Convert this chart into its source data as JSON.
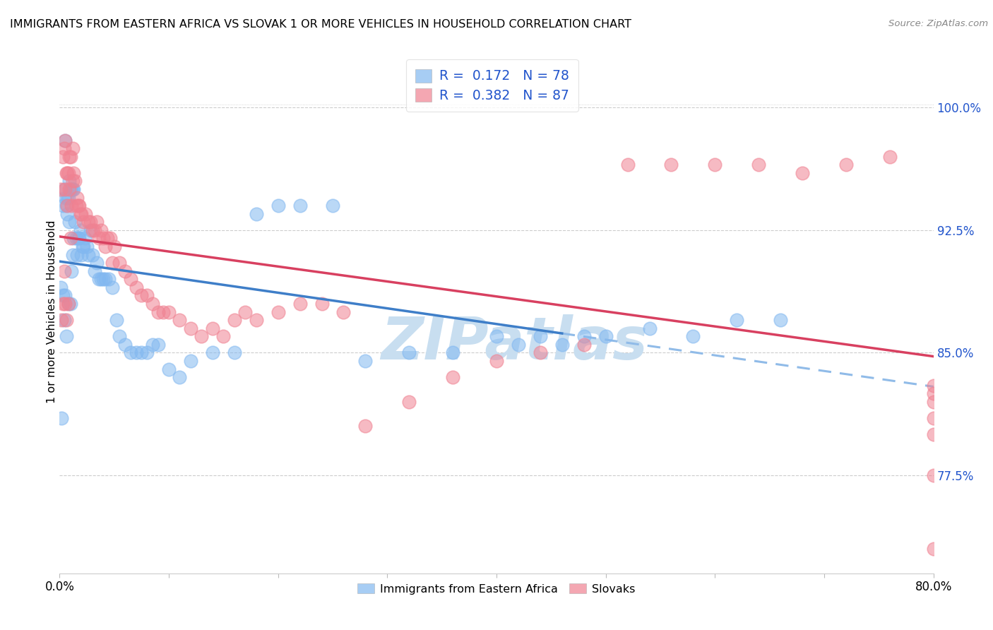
{
  "title": "IMMIGRANTS FROM EASTERN AFRICA VS SLOVAK 1 OR MORE VEHICLES IN HOUSEHOLD CORRELATION CHART",
  "source": "Source: ZipAtlas.com",
  "ylabel": "1 or more Vehicles in Household",
  "legend_blue_r": "0.172",
  "legend_blue_n": "78",
  "legend_pink_r": "0.382",
  "legend_pink_n": "87",
  "blue_color": "#82B8F0",
  "pink_color": "#F08292",
  "blue_line_color": "#3E7EC8",
  "pink_line_color": "#D84060",
  "dashed_line_color": "#90BBE8",
  "r_value_color": "#2255CC",
  "background_color": "#FFFFFF",
  "watermark_text_color": "#C8DEF0",
  "x_min": 0.0,
  "x_max": 0.8,
  "y_min": 0.715,
  "y_max": 1.035,
  "ytick_vals": [
    0.775,
    0.85,
    0.925,
    1.0
  ],
  "ytick_labels": [
    "77.5%",
    "85.0%",
    "92.5%",
    "100.0%"
  ],
  "blue_x": [
    0.001,
    0.002,
    0.003,
    0.003,
    0.004,
    0.004,
    0.005,
    0.005,
    0.005,
    0.006,
    0.006,
    0.007,
    0.007,
    0.008,
    0.008,
    0.009,
    0.009,
    0.01,
    0.01,
    0.011,
    0.011,
    0.012,
    0.012,
    0.013,
    0.013,
    0.014,
    0.015,
    0.016,
    0.017,
    0.018,
    0.019,
    0.02,
    0.021,
    0.022,
    0.023,
    0.025,
    0.026,
    0.028,
    0.03,
    0.032,
    0.034,
    0.036,
    0.038,
    0.04,
    0.042,
    0.045,
    0.048,
    0.052,
    0.055,
    0.06,
    0.065,
    0.07,
    0.075,
    0.08,
    0.085,
    0.09,
    0.1,
    0.11,
    0.12,
    0.14,
    0.16,
    0.18,
    0.2,
    0.22,
    0.25,
    0.28,
    0.32,
    0.36,
    0.4,
    0.42,
    0.44,
    0.46,
    0.48,
    0.5,
    0.54,
    0.58,
    0.62,
    0.66
  ],
  "blue_y": [
    0.89,
    0.81,
    0.885,
    0.94,
    0.87,
    0.95,
    0.885,
    0.945,
    0.98,
    0.86,
    0.94,
    0.935,
    0.945,
    0.88,
    0.945,
    0.93,
    0.955,
    0.88,
    0.95,
    0.9,
    0.95,
    0.91,
    0.95,
    0.92,
    0.95,
    0.93,
    0.92,
    0.91,
    0.92,
    0.92,
    0.925,
    0.91,
    0.915,
    0.915,
    0.92,
    0.915,
    0.91,
    0.925,
    0.91,
    0.9,
    0.905,
    0.895,
    0.895,
    0.895,
    0.895,
    0.895,
    0.89,
    0.87,
    0.86,
    0.855,
    0.85,
    0.85,
    0.85,
    0.85,
    0.855,
    0.855,
    0.84,
    0.835,
    0.845,
    0.85,
    0.85,
    0.935,
    0.94,
    0.94,
    0.94,
    0.845,
    0.85,
    0.85,
    0.86,
    0.855,
    0.86,
    0.855,
    0.86,
    0.86,
    0.865,
    0.86,
    0.87,
    0.87
  ],
  "pink_x": [
    0.001,
    0.002,
    0.003,
    0.003,
    0.004,
    0.004,
    0.005,
    0.005,
    0.005,
    0.006,
    0.006,
    0.007,
    0.007,
    0.008,
    0.008,
    0.009,
    0.009,
    0.01,
    0.01,
    0.011,
    0.012,
    0.012,
    0.013,
    0.014,
    0.015,
    0.016,
    0.017,
    0.018,
    0.019,
    0.02,
    0.022,
    0.024,
    0.026,
    0.028,
    0.03,
    0.032,
    0.034,
    0.036,
    0.038,
    0.04,
    0.042,
    0.044,
    0.046,
    0.048,
    0.05,
    0.055,
    0.06,
    0.065,
    0.07,
    0.075,
    0.08,
    0.085,
    0.09,
    0.095,
    0.1,
    0.11,
    0.12,
    0.13,
    0.14,
    0.15,
    0.16,
    0.17,
    0.18,
    0.2,
    0.22,
    0.24,
    0.26,
    0.28,
    0.32,
    0.36,
    0.4,
    0.44,
    0.48,
    0.52,
    0.56,
    0.6,
    0.64,
    0.68,
    0.72,
    0.76,
    0.8,
    0.8,
    0.8,
    0.8,
    0.8,
    0.8,
    0.8
  ],
  "pink_y": [
    0.95,
    0.87,
    0.88,
    0.97,
    0.9,
    0.975,
    0.88,
    0.95,
    0.98,
    0.87,
    0.96,
    0.94,
    0.96,
    0.88,
    0.96,
    0.95,
    0.97,
    0.92,
    0.97,
    0.94,
    0.955,
    0.975,
    0.96,
    0.955,
    0.94,
    0.945,
    0.94,
    0.94,
    0.935,
    0.935,
    0.93,
    0.935,
    0.93,
    0.93,
    0.925,
    0.925,
    0.93,
    0.92,
    0.925,
    0.92,
    0.915,
    0.92,
    0.92,
    0.905,
    0.915,
    0.905,
    0.9,
    0.895,
    0.89,
    0.885,
    0.885,
    0.88,
    0.875,
    0.875,
    0.875,
    0.87,
    0.865,
    0.86,
    0.865,
    0.86,
    0.87,
    0.875,
    0.87,
    0.875,
    0.88,
    0.88,
    0.875,
    0.805,
    0.82,
    0.835,
    0.845,
    0.85,
    0.855,
    0.965,
    0.965,
    0.965,
    0.965,
    0.96,
    0.965,
    0.97,
    0.73,
    0.775,
    0.8,
    0.81,
    0.82,
    0.825,
    0.83
  ]
}
